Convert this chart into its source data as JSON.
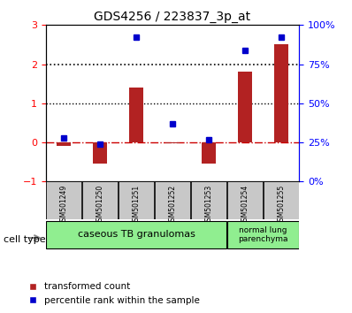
{
  "title": "GDS4256 / 223837_3p_at",
  "samples": [
    "GSM501249",
    "GSM501250",
    "GSM501251",
    "GSM501252",
    "GSM501253",
    "GSM501254",
    "GSM501255"
  ],
  "transformed_count": [
    -0.1,
    -0.55,
    1.4,
    -0.02,
    -0.55,
    1.82,
    2.5
  ],
  "percentile_rank": [
    28,
    24,
    92,
    37,
    27,
    84,
    92
  ],
  "left_ylim": [
    -1,
    3
  ],
  "right_ylim": [
    0,
    100
  ],
  "left_yticks": [
    -1,
    0,
    1,
    2,
    3
  ],
  "right_yticks": [
    0,
    25,
    50,
    75,
    100
  ],
  "right_yticklabels": [
    "0%",
    "25%",
    "50%",
    "75%",
    "100%"
  ],
  "bar_color": "#b22222",
  "point_color": "#0000cc",
  "hline_color": "#cc0000",
  "dotted_line_color": "#000000",
  "cell_type_groups": [
    {
      "label": "caseous TB granulomas",
      "span": [
        0,
        4
      ],
      "color": "#90ee90"
    },
    {
      "label": "normal lung\nparenchyma",
      "span": [
        5,
        6
      ],
      "color": "#90ee90"
    }
  ],
  "legend_bar_label": "transformed count",
  "legend_point_label": "percentile rank within the sample",
  "cell_type_label": "cell type",
  "background_color": "#ffffff",
  "tick_area_color": "#c8c8c8",
  "bar_width": 0.4
}
